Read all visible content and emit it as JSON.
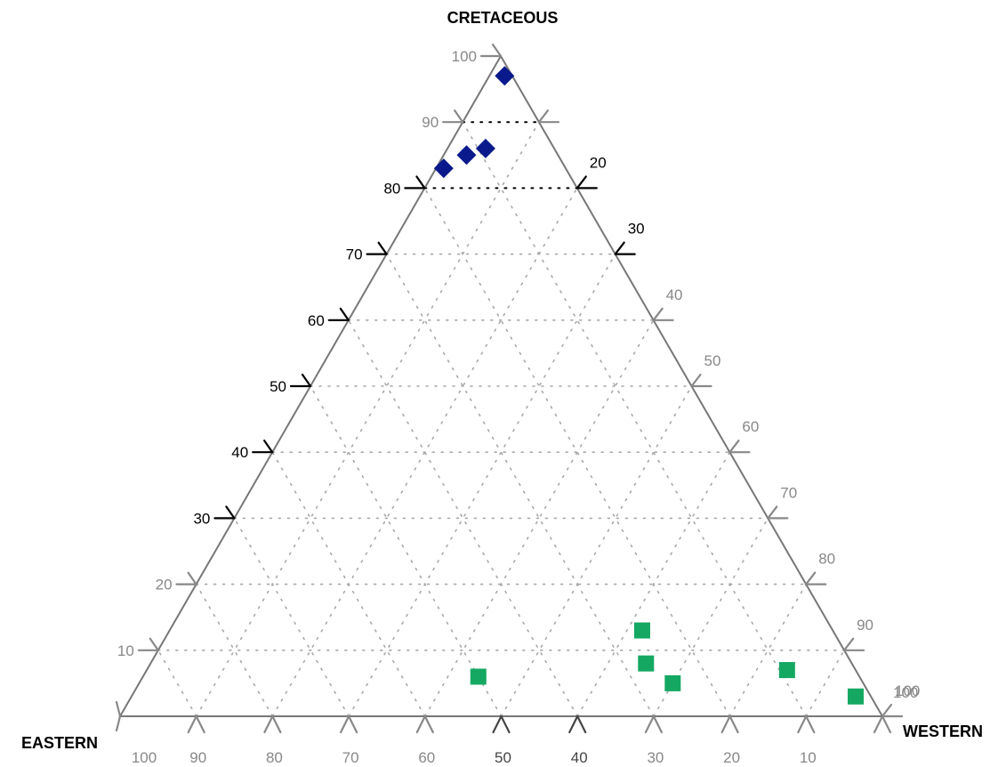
{
  "chart_data": {
    "type": "ternary-scatter",
    "title": "",
    "vertices": {
      "top": "CRETACEOUS",
      "left": "EASTERN",
      "right": "WESTERN"
    },
    "ticks": [
      "10",
      "20",
      "30",
      "40",
      "50",
      "60",
      "70",
      "80",
      "90",
      "100"
    ],
    "grid": "dotted",
    "highlight_color": "#000000",
    "axis_color": "#888888",
    "series": [
      {
        "marker": "diamond",
        "color": "#0a1a8c",
        "points": [
          {
            "cretaceous": 97,
            "western": 2,
            "eastern": 1
          },
          {
            "cretaceous": 86,
            "western": 5,
            "eastern": 9
          },
          {
            "cretaceous": 85,
            "western": 3,
            "eastern": 12
          },
          {
            "cretaceous": 83,
            "western": 1,
            "eastern": 16
          }
        ]
      },
      {
        "marker": "square",
        "color": "#15a862",
        "points": [
          {
            "cretaceous": 13,
            "western": 62,
            "eastern": 25
          },
          {
            "cretaceous": 8,
            "western": 65,
            "eastern": 27
          },
          {
            "cretaceous": 5,
            "western": 70,
            "eastern": 25
          },
          {
            "cretaceous": 7,
            "western": 84,
            "eastern": 9
          },
          {
            "cretaceous": 3,
            "western": 95,
            "eastern": 2
          },
          {
            "cretaceous": 6,
            "western": 44,
            "eastern": 50
          }
        ]
      }
    ]
  }
}
